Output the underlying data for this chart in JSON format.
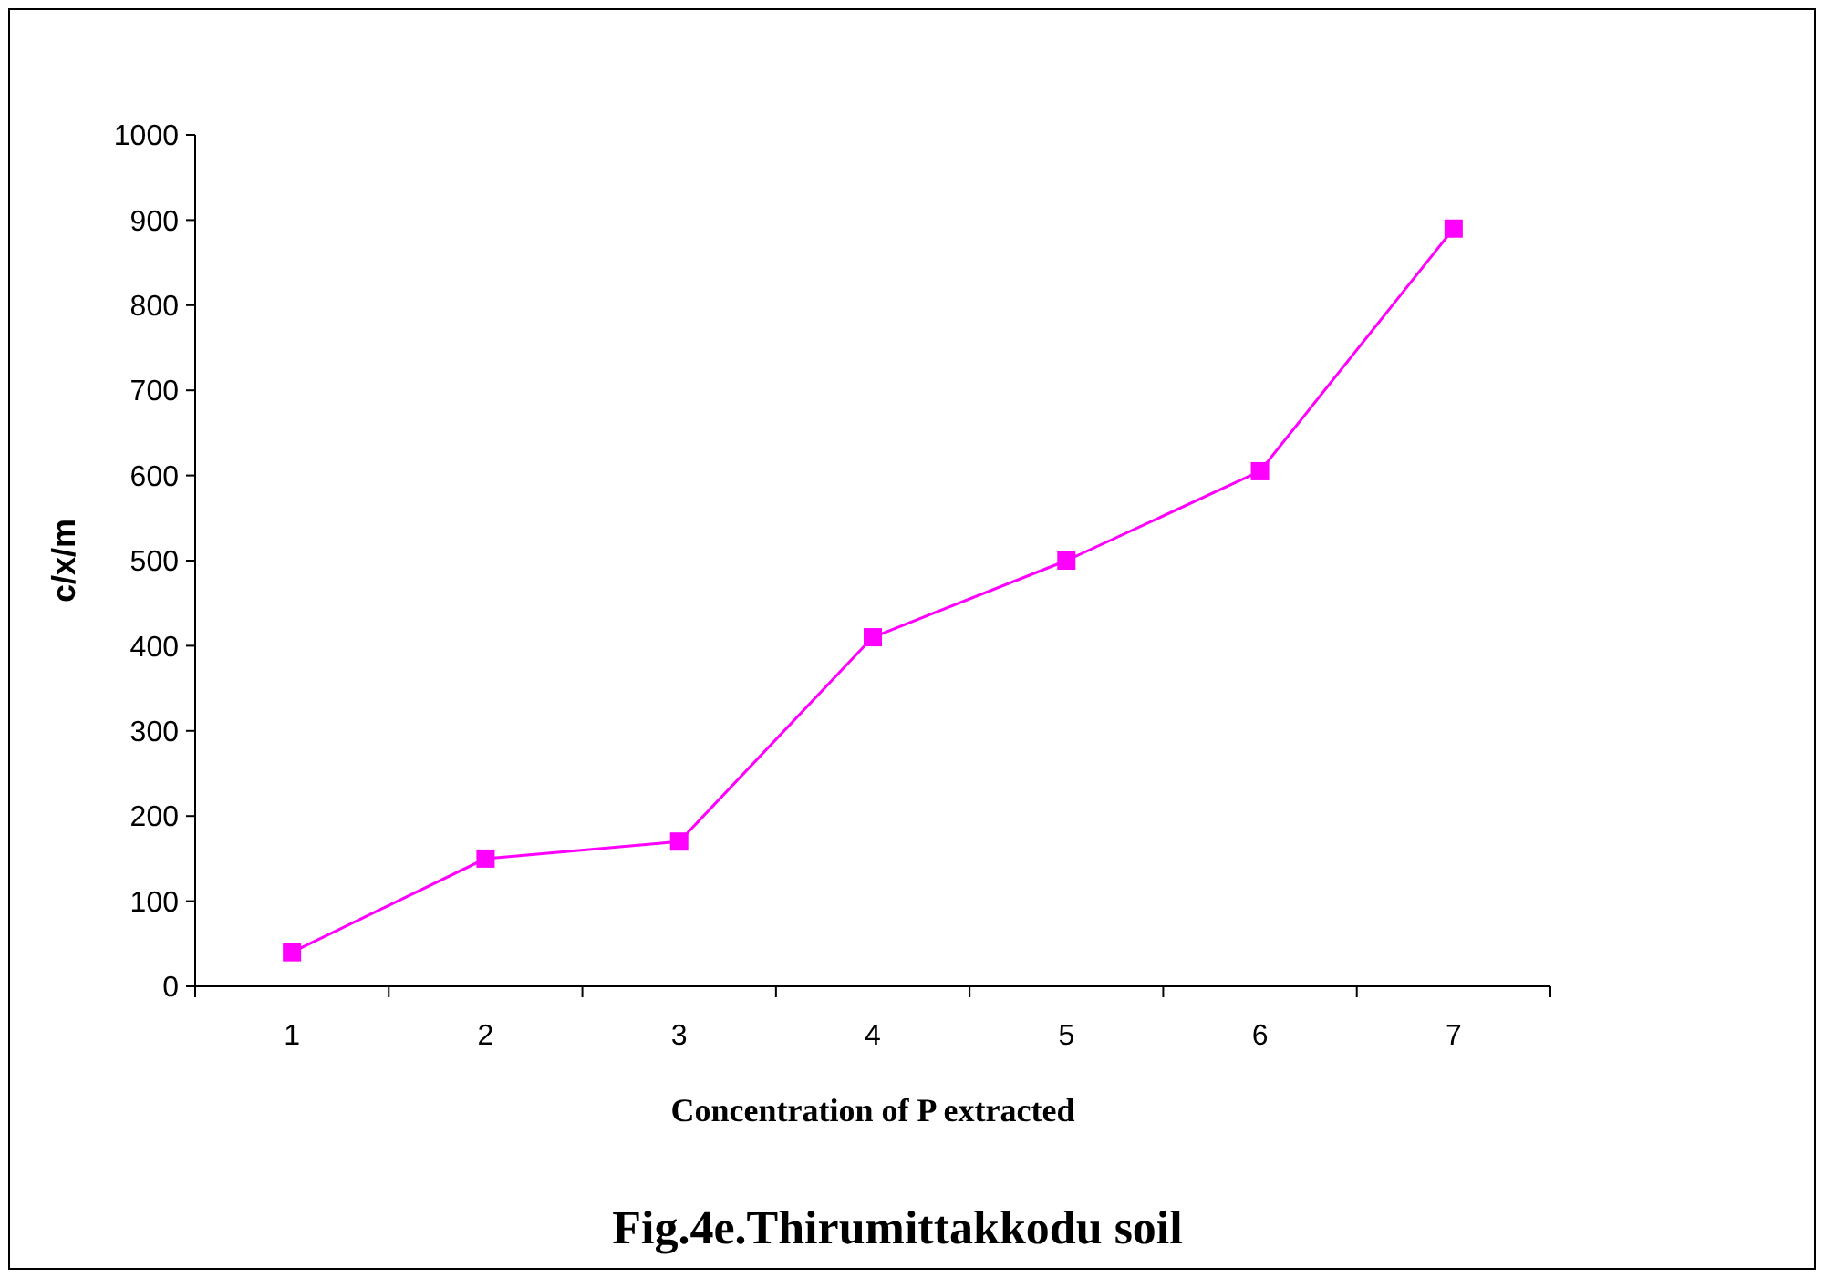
{
  "chart_data": {
    "type": "line",
    "title": "Fig.4e.Thirumittakkodu soil",
    "xlabel": "Concentration of P  extracted",
    "ylabel": "c/x/m",
    "categories": [
      "1",
      "2",
      "3",
      "4",
      "5",
      "6",
      "7"
    ],
    "series": [
      {
        "color": "#ff00ff",
        "values": [
          40,
          150,
          170,
          410,
          500,
          605,
          890
        ]
      }
    ],
    "ylim": [
      0,
      1000
    ],
    "yticks": [
      0,
      100,
      200,
      300,
      400,
      500,
      600,
      700,
      800,
      900,
      1000
    ],
    "grid": false,
    "marker": "square",
    "line_style": "solid"
  }
}
